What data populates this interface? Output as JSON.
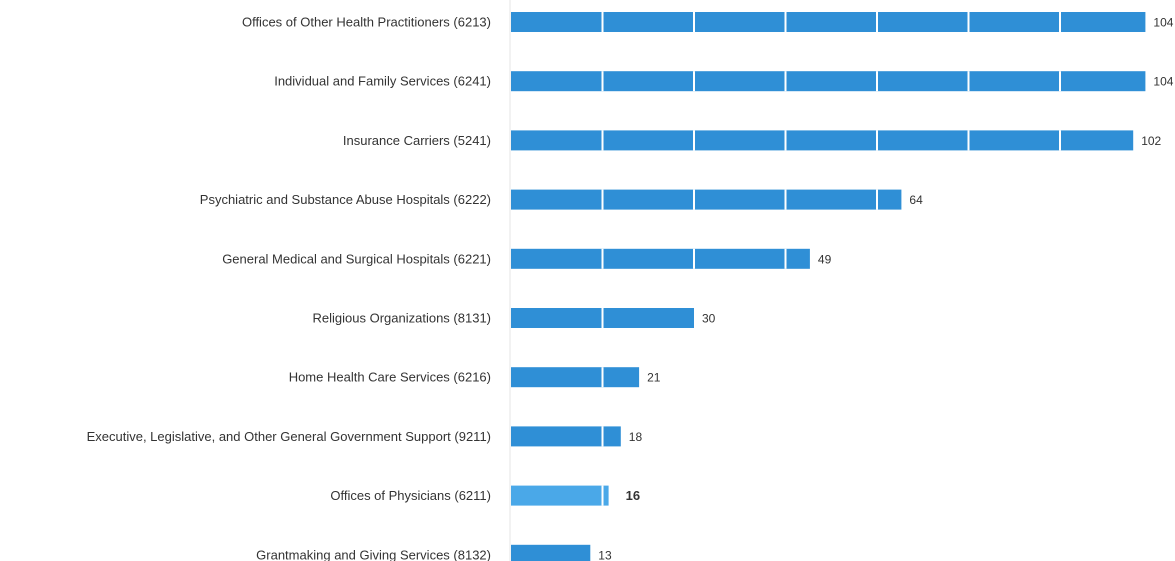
{
  "chart_data": {
    "type": "bar",
    "orientation": "horizontal",
    "categories": [
      "Offices of Other Health Practitioners (6213)",
      "Individual and Family Services (6241)",
      "Insurance Carriers (5241)",
      "Psychiatric and Substance Abuse Hospitals (6222)",
      "General Medical and Surgical Hospitals (6221)",
      "Religious Organizations (8131)",
      "Home Health Care Services (6216)",
      "Executive, Legislative, and Other General Government Support (9211)",
      "Offices of Physicians (6211)",
      "Grantmaking and Giving Services (8132)"
    ],
    "values": [
      104,
      104,
      102,
      64,
      49,
      30,
      21,
      18,
      16,
      13
    ],
    "highlighted_category": "Offices of Physicians (6211)",
    "xlim": [
      0,
      104
    ],
    "grid": true,
    "legend": "none",
    "colors": {
      "bar": "#2f8fd6",
      "bar_highlight": "#4aa8e8",
      "text": "#333333"
    }
  }
}
